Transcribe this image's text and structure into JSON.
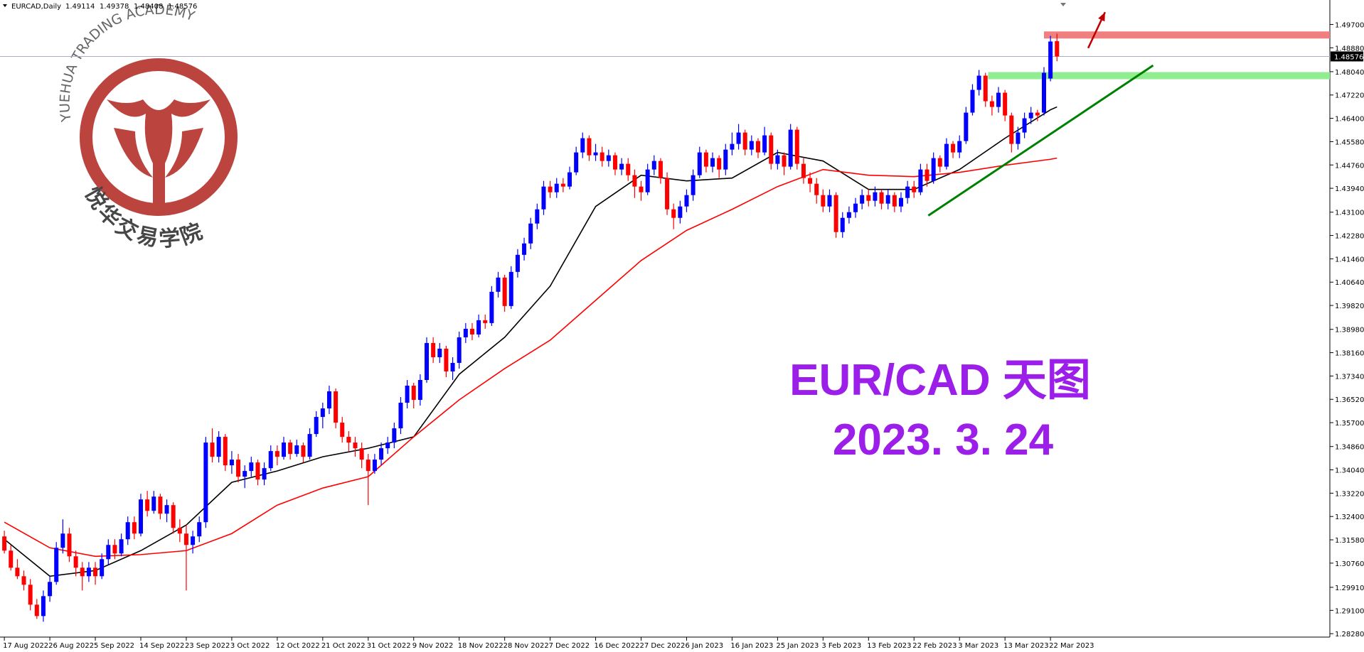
{
  "header": {
    "symbol": "EURCAD,Daily"
  },
  "watermark": {
    "en": "YUEHUA TRADING ACADEMY",
    "cn": "悦华交易学院"
  },
  "chart_data": {
    "type": "candlestick",
    "up_color": "#0000ff",
    "down_color": "#ff0000",
    "xlim": [
      -0.67,
      204
    ],
    "ylim": [
      1.2816,
      1.5056
    ],
    "xticks": [
      {
        "value": 0,
        "label": "17 Aug 2022"
      },
      {
        "value": 7,
        "label": "26 Aug 2022"
      },
      {
        "value": 14,
        "label": "5 Sep 2022"
      },
      {
        "value": 21,
        "label": "14 Sep 2022"
      },
      {
        "value": 28,
        "label": "23 Sep 2022"
      },
      {
        "value": 35,
        "label": "3 Oct 2022"
      },
      {
        "value": 42,
        "label": "12 Oct 2022"
      },
      {
        "value": 49,
        "label": "21 Oct 2022"
      },
      {
        "value": 56,
        "label": "31 Oct 2022"
      },
      {
        "value": 63,
        "label": "9 Nov 2022"
      },
      {
        "value": 70,
        "label": "18 Nov 2022"
      },
      {
        "value": 77,
        "label": "28 Nov 2022"
      },
      {
        "value": 84,
        "label": "7 Dec 2022"
      },
      {
        "value": 91,
        "label": "16 Dec 2022"
      },
      {
        "value": 98,
        "label": "27 Dec 2022"
      },
      {
        "value": 105,
        "label": "6 Jan 2023"
      },
      {
        "value": 112,
        "label": "16 Jan 2023"
      },
      {
        "value": 119,
        "label": "25 Jan 2023"
      },
      {
        "value": 126,
        "label": "3 Feb 2023"
      },
      {
        "value": 133,
        "label": "13 Feb 2023"
      },
      {
        "value": 140,
        "label": "22 Feb 2023"
      },
      {
        "value": 147,
        "label": "3 Mar 2023"
      },
      {
        "value": 154,
        "label": "13 Mar 2023"
      },
      {
        "value": 161,
        "label": "22 Mar 2023"
      }
    ],
    "yticks": [
      {
        "value": 1.2828,
        "label": "1.28280"
      },
      {
        "value": 1.291,
        "label": "1.29100"
      },
      {
        "value": 1.2991,
        "label": "1.29910"
      },
      {
        "value": 1.3076,
        "label": "1.30760"
      },
      {
        "value": 1.3158,
        "label": "1.31580"
      },
      {
        "value": 1.324,
        "label": "1.32400"
      },
      {
        "value": 1.3322,
        "label": "1.33220"
      },
      {
        "value": 1.3404,
        "label": "1.34040"
      },
      {
        "value": 1.3486,
        "label": "1.34860"
      },
      {
        "value": 1.357,
        "label": "1.35700"
      },
      {
        "value": 1.3652,
        "label": "1.36520"
      },
      {
        "value": 1.3734,
        "label": "1.37340"
      },
      {
        "value": 1.3816,
        "label": "1.38160"
      },
      {
        "value": 1.3898,
        "label": "1.38980"
      },
      {
        "value": 1.3982,
        "label": "1.39820"
      },
      {
        "value": 1.4064,
        "label": "1.40640"
      },
      {
        "value": 1.4146,
        "label": "1.41460"
      },
      {
        "value": 1.4228,
        "label": "1.42280"
      },
      {
        "value": 1.431,
        "label": "1.43100"
      },
      {
        "value": 1.4394,
        "label": "1.43940"
      },
      {
        "value": 1.4476,
        "label": "1.44760"
      },
      {
        "value": 1.4558,
        "label": "1.45580"
      },
      {
        "value": 1.464,
        "label": "1.46400"
      },
      {
        "value": 1.4722,
        "label": "1.47220"
      },
      {
        "value": 1.4804,
        "label": "1.48040"
      },
      {
        "value": 1.4888,
        "label": "1.48880"
      },
      {
        "value": 1.497,
        "label": "1.49700"
      }
    ],
    "ohlc": [
      [
        1.317,
        1.319,
        1.311,
        1.312
      ],
      [
        1.312,
        1.314,
        1.305,
        1.306
      ],
      [
        1.306,
        1.309,
        1.302,
        1.303
      ],
      [
        1.303,
        1.305,
        1.298,
        1.3
      ],
      [
        1.3,
        1.302,
        1.291,
        1.293
      ],
      [
        1.293,
        1.295,
        1.288,
        1.289
      ],
      [
        1.289,
        1.298,
        1.287,
        1.296
      ],
      [
        1.296,
        1.303,
        1.294,
        1.301
      ],
      [
        1.301,
        1.315,
        1.3,
        1.313
      ],
      [
        1.313,
        1.323,
        1.311,
        1.318
      ],
      [
        1.318,
        1.32,
        1.308,
        1.31
      ],
      [
        1.31,
        1.312,
        1.303,
        1.306
      ],
      [
        1.306,
        1.308,
        1.298,
        1.303
      ],
      [
        1.303,
        1.308,
        1.301,
        1.306
      ],
      [
        1.306,
        1.308,
        1.3,
        1.303
      ],
      [
        1.303,
        1.311,
        1.302,
        1.309
      ],
      [
        1.309,
        1.316,
        1.307,
        1.314
      ],
      [
        1.314,
        1.316,
        1.309,
        1.311
      ],
      [
        1.311,
        1.318,
        1.31,
        1.316
      ],
      [
        1.316,
        1.324,
        1.314,
        1.322
      ],
      [
        1.322,
        1.324,
        1.316,
        1.318
      ],
      [
        1.318,
        1.332,
        1.317,
        1.33
      ],
      [
        1.33,
        1.333,
        1.324,
        1.326
      ],
      [
        1.326,
        1.333,
        1.325,
        1.331
      ],
      [
        1.331,
        1.332,
        1.323,
        1.325
      ],
      [
        1.325,
        1.33,
        1.322,
        1.328
      ],
      [
        1.328,
        1.329,
        1.318,
        1.32
      ],
      [
        1.32,
        1.323,
        1.315,
        1.318
      ],
      [
        1.318,
        1.321,
        1.298,
        1.314
      ],
      [
        1.314,
        1.319,
        1.311,
        1.317
      ],
      [
        1.317,
        1.324,
        1.315,
        1.322
      ],
      [
        1.322,
        1.352,
        1.32,
        1.35
      ],
      [
        1.35,
        1.355,
        1.343,
        1.345
      ],
      [
        1.345,
        1.354,
        1.343,
        1.352
      ],
      [
        1.352,
        1.353,
        1.34,
        1.342
      ],
      [
        1.342,
        1.347,
        1.339,
        1.344
      ],
      [
        1.344,
        1.346,
        1.336,
        1.338
      ],
      [
        1.338,
        1.342,
        1.334,
        1.34
      ],
      [
        1.34,
        1.345,
        1.338,
        1.343
      ],
      [
        1.343,
        1.344,
        1.335,
        1.337
      ],
      [
        1.337,
        1.343,
        1.335,
        1.341
      ],
      [
        1.341,
        1.349,
        1.34,
        1.347
      ],
      [
        1.347,
        1.349,
        1.342,
        1.345
      ],
      [
        1.345,
        1.352,
        1.344,
        1.35
      ],
      [
        1.35,
        1.351,
        1.344,
        1.346
      ],
      [
        1.346,
        1.351,
        1.345,
        1.349
      ],
      [
        1.349,
        1.35,
        1.343,
        1.345
      ],
      [
        1.345,
        1.355,
        1.344,
        1.353
      ],
      [
        1.353,
        1.361,
        1.352,
        1.359
      ],
      [
        1.359,
        1.364,
        1.355,
        1.362
      ],
      [
        1.362,
        1.37,
        1.36,
        1.368
      ],
      [
        1.368,
        1.369,
        1.355,
        1.357
      ],
      [
        1.357,
        1.359,
        1.35,
        1.352
      ],
      [
        1.352,
        1.354,
        1.347,
        1.35
      ],
      [
        1.35,
        1.352,
        1.345,
        1.348
      ],
      [
        1.348,
        1.35,
        1.341,
        1.344
      ],
      [
        1.344,
        1.346,
        1.328,
        1.34
      ],
      [
        1.34,
        1.346,
        1.339,
        1.344
      ],
      [
        1.344,
        1.35,
        1.342,
        1.348
      ],
      [
        1.348,
        1.352,
        1.346,
        1.35
      ],
      [
        1.35,
        1.357,
        1.348,
        1.355
      ],
      [
        1.355,
        1.366,
        1.353,
        1.364
      ],
      [
        1.364,
        1.372,
        1.362,
        1.37
      ],
      [
        1.37,
        1.371,
        1.362,
        1.365
      ],
      [
        1.365,
        1.374,
        1.363,
        1.372
      ],
      [
        1.372,
        1.387,
        1.371,
        1.385
      ],
      [
        1.385,
        1.387,
        1.378,
        1.38
      ],
      [
        1.38,
        1.385,
        1.378,
        1.383
      ],
      [
        1.383,
        1.384,
        1.373,
        1.375
      ],
      [
        1.375,
        1.38,
        1.372,
        1.378
      ],
      [
        1.378,
        1.389,
        1.376,
        1.387
      ],
      [
        1.387,
        1.392,
        1.385,
        1.39
      ],
      [
        1.39,
        1.392,
        1.386,
        1.388
      ],
      [
        1.388,
        1.395,
        1.387,
        1.393
      ],
      [
        1.393,
        1.395,
        1.39,
        1.392
      ],
      [
        1.392,
        1.405,
        1.391,
        1.403
      ],
      [
        1.403,
        1.41,
        1.401,
        1.408
      ],
      [
        1.408,
        1.409,
        1.396,
        1.398
      ],
      [
        1.398,
        1.412,
        1.397,
        1.41
      ],
      [
        1.41,
        1.418,
        1.408,
        1.416
      ],
      [
        1.416,
        1.422,
        1.414,
        1.42
      ],
      [
        1.42,
        1.429,
        1.418,
        1.427
      ],
      [
        1.427,
        1.434,
        1.425,
        1.432
      ],
      [
        1.432,
        1.442,
        1.43,
        1.44
      ],
      [
        1.44,
        1.442,
        1.436,
        1.438
      ],
      [
        1.438,
        1.443,
        1.436,
        1.441
      ],
      [
        1.441,
        1.443,
        1.438,
        1.44
      ],
      [
        1.44,
        1.447,
        1.439,
        1.445
      ],
      [
        1.445,
        1.454,
        1.444,
        1.452
      ],
      [
        1.452,
        1.459,
        1.45,
        1.457
      ],
      [
        1.457,
        1.458,
        1.449,
        1.451
      ],
      [
        1.451,
        1.455,
        1.449,
        1.452
      ],
      [
        1.452,
        1.454,
        1.447,
        1.449
      ],
      [
        1.449,
        1.453,
        1.447,
        1.451
      ],
      [
        1.451,
        1.452,
        1.444,
        1.446
      ],
      [
        1.446,
        1.45,
        1.444,
        1.448
      ],
      [
        1.448,
        1.45,
        1.442,
        1.444
      ],
      [
        1.444,
        1.446,
        1.436,
        1.44
      ],
      [
        1.44,
        1.442,
        1.435,
        1.438
      ],
      [
        1.438,
        1.448,
        1.437,
        1.446
      ],
      [
        1.446,
        1.451,
        1.444,
        1.449
      ],
      [
        1.449,
        1.45,
        1.441,
        1.443
      ],
      [
        1.443,
        1.445,
        1.43,
        1.432
      ],
      [
        1.432,
        1.434,
        1.425,
        1.429
      ],
      [
        1.429,
        1.435,
        1.427,
        1.433
      ],
      [
        1.433,
        1.439,
        1.431,
        1.437
      ],
      [
        1.437,
        1.446,
        1.435,
        1.444
      ],
      [
        1.444,
        1.454,
        1.443,
        1.452
      ],
      [
        1.452,
        1.453,
        1.445,
        1.447
      ],
      [
        1.447,
        1.452,
        1.445,
        1.45
      ],
      [
        1.45,
        1.451,
        1.443,
        1.446
      ],
      [
        1.446,
        1.455,
        1.444,
        1.453
      ],
      [
        1.453,
        1.459,
        1.451,
        1.455
      ],
      [
        1.455,
        1.462,
        1.453,
        1.459
      ],
      [
        1.459,
        1.46,
        1.451,
        1.453
      ],
      [
        1.453,
        1.458,
        1.451,
        1.456
      ],
      [
        1.456,
        1.457,
        1.45,
        1.452
      ],
      [
        1.452,
        1.461,
        1.451,
        1.458
      ],
      [
        1.458,
        1.459,
        1.446,
        1.448
      ],
      [
        1.448,
        1.453,
        1.446,
        1.451
      ],
      [
        1.451,
        1.452,
        1.444,
        1.447
      ],
      [
        1.447,
        1.462,
        1.446,
        1.46
      ],
      [
        1.46,
        1.461,
        1.446,
        1.448
      ],
      [
        1.448,
        1.45,
        1.441,
        1.443
      ],
      [
        1.443,
        1.445,
        1.438,
        1.441
      ],
      [
        1.441,
        1.443,
        1.434,
        1.437
      ],
      [
        1.437,
        1.439,
        1.431,
        1.433
      ],
      [
        1.433,
        1.439,
        1.431,
        1.437
      ],
      [
        1.437,
        1.438,
        1.422,
        1.424
      ],
      [
        1.424,
        1.431,
        1.422,
        1.429
      ],
      [
        1.429,
        1.433,
        1.427,
        1.431
      ],
      [
        1.431,
        1.436,
        1.429,
        1.434
      ],
      [
        1.434,
        1.439,
        1.432,
        1.437
      ],
      [
        1.437,
        1.439,
        1.433,
        1.435
      ],
      [
        1.435,
        1.44,
        1.433,
        1.438
      ],
      [
        1.438,
        1.439,
        1.432,
        1.434
      ],
      [
        1.434,
        1.439,
        1.432,
        1.437
      ],
      [
        1.437,
        1.438,
        1.431,
        1.433
      ],
      [
        1.433,
        1.438,
        1.431,
        1.436
      ],
      [
        1.436,
        1.442,
        1.434,
        1.44
      ],
      [
        1.44,
        1.442,
        1.436,
        1.438
      ],
      [
        1.438,
        1.448,
        1.437,
        1.446
      ],
      [
        1.446,
        1.448,
        1.44,
        1.442
      ],
      [
        1.442,
        1.452,
        1.441,
        1.45
      ],
      [
        1.45,
        1.451,
        1.445,
        1.447
      ],
      [
        1.447,
        1.457,
        1.446,
        1.455
      ],
      [
        1.455,
        1.456,
        1.45,
        1.452
      ],
      [
        1.452,
        1.458,
        1.45,
        1.456
      ],
      [
        1.456,
        1.468,
        1.455,
        1.466
      ],
      [
        1.466,
        1.476,
        1.465,
        1.474
      ],
      [
        1.474,
        1.481,
        1.472,
        1.479
      ],
      [
        1.479,
        1.48,
        1.468,
        1.47
      ],
      [
        1.47,
        1.472,
        1.465,
        1.468
      ],
      [
        1.468,
        1.475,
        1.466,
        1.473
      ],
      [
        1.473,
        1.474,
        1.463,
        1.465
      ],
      [
        1.465,
        1.466,
        1.452,
        1.455
      ],
      [
        1.455,
        1.461,
        1.453,
        1.459
      ],
      [
        1.459,
        1.466,
        1.457,
        1.464
      ],
      [
        1.464,
        1.468,
        1.462,
        1.466
      ],
      [
        1.466,
        1.467,
        1.463,
        1.465
      ],
      [
        1.466,
        1.482,
        1.465,
        1.48
      ],
      [
        1.478,
        1.493,
        1.477,
        1.491
      ],
      [
        1.49114,
        1.49378,
        1.48408,
        1.48576
      ]
    ],
    "lines": [
      {
        "color": "#000000",
        "x": [
          0,
          7,
          14,
          21,
          28,
          35,
          42,
          49,
          56,
          63,
          70,
          77,
          84,
          91,
          98,
          105,
          112,
          119,
          126,
          133,
          140,
          147,
          154,
          161,
          162
        ],
        "values": [
          1.316,
          1.303,
          1.305,
          1.312,
          1.321,
          1.336,
          1.34,
          1.345,
          1.348,
          1.352,
          1.374,
          1.387,
          1.405,
          1.433,
          1.444,
          1.442,
          1.443,
          1.452,
          1.449,
          1.439,
          1.439,
          1.446,
          1.457,
          1.467,
          1.468
        ]
      },
      {
        "color": "#ff0000",
        "x": [
          0,
          7,
          14,
          21,
          28,
          35,
          42,
          49,
          56,
          63,
          70,
          77,
          84,
          91,
          98,
          105,
          112,
          119,
          126,
          133,
          140,
          147,
          154,
          161,
          162
        ],
        "values": [
          1.322,
          1.313,
          1.31,
          1.3106,
          1.312,
          1.318,
          1.328,
          1.334,
          1.338,
          1.352,
          1.365,
          1.376,
          1.386,
          1.4,
          1.414,
          1.4246,
          1.432,
          1.44,
          1.446,
          1.444,
          1.4435,
          1.445,
          1.4475,
          1.4496,
          1.45
        ]
      }
    ],
    "zones": [
      {
        "color": "#f08080",
        "from": 160,
        "value": 1.4933
      },
      {
        "color": "#90ee90",
        "from": 151.4,
        "value": 1.479
      }
    ],
    "trendline": {
      "color": "#008000",
      "x": [
        142.2,
        176.8
      ],
      "values": [
        1.4298,
        1.4826
      ]
    },
    "arrow": {
      "color": "#c00000",
      "x": [
        166.8,
        169.4
      ],
      "values": [
        1.4887,
        1.5013
      ]
    },
    "annotations": [
      "EUR/CAD 天图",
      "2023. 3. 24"
    ]
  }
}
